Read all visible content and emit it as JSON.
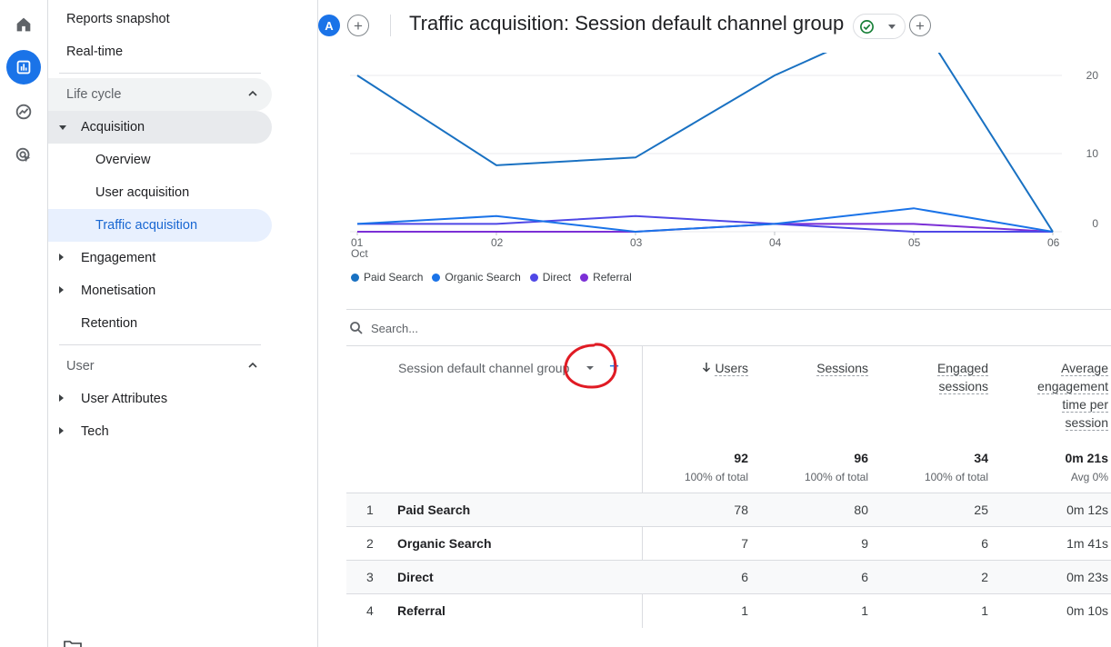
{
  "rail": {
    "items": [
      {
        "icon": "home-icon"
      },
      {
        "icon": "reports-icon",
        "active": true
      },
      {
        "icon": "explore-icon"
      },
      {
        "icon": "advertising-icon"
      }
    ]
  },
  "nav": {
    "reports_snapshot": "Reports snapshot",
    "realtime": "Real-time",
    "lifecycle": {
      "label": "Life cycle",
      "acquisition": "Acquisition",
      "overview": "Overview",
      "user_acquisition": "User acquisition",
      "traffic_acquisition": "Traffic acquisition",
      "engagement": "Engagement",
      "monetisation": "Monetisation",
      "retention": "Retention"
    },
    "user": {
      "label": "User",
      "user_attributes": "User Attributes",
      "tech": "Tech"
    }
  },
  "header": {
    "avatar_letter": "A",
    "title": "Traffic acquisition: Session default channel group",
    "plus": "+"
  },
  "chart_data": {
    "type": "line",
    "categories": [
      "01",
      "02",
      "03",
      "04",
      "05",
      "06"
    ],
    "x_sublabel": "Oct",
    "yticks": [
      "20",
      "10",
      "0"
    ],
    "ylim": [
      0,
      20
    ],
    "series": [
      {
        "name": "Paid Search",
        "color": "#1971c2",
        "values": [
          20,
          8.5,
          9.5,
          20,
          28,
          0
        ]
      },
      {
        "name": "Organic Search",
        "color": "#1a73e8",
        "values": [
          1,
          2,
          0,
          1,
          3,
          0
        ]
      },
      {
        "name": "Direct",
        "color": "#4f47e6",
        "values": [
          1,
          1,
          2,
          1,
          0,
          0
        ]
      },
      {
        "name": "Referral",
        "color": "#7b2fd6",
        "values": [
          0,
          0,
          0,
          1,
          1,
          0
        ]
      }
    ]
  },
  "search": {
    "placeholder": "Search..."
  },
  "table": {
    "dimension_header": "Session default channel group",
    "add_icon": "+",
    "metrics": [
      {
        "label": "Users",
        "sorted": true,
        "total": "92",
        "sub": "100% of total"
      },
      {
        "label": "Sessions",
        "total": "96",
        "sub": "100% of total"
      },
      {
        "label_lines": [
          "Engaged",
          "sessions"
        ],
        "total": "34",
        "sub": "100% of total"
      },
      {
        "label_lines": [
          "Average",
          "engagement",
          "time per",
          "session"
        ],
        "total": "0m 21s",
        "sub": "Avg 0%"
      }
    ],
    "rows": [
      {
        "idx": "1",
        "label": "Paid Search",
        "users": "78",
        "sessions": "80",
        "engaged": "25",
        "avg": "0m 12s"
      },
      {
        "idx": "2",
        "label": "Organic Search",
        "users": "7",
        "sessions": "9",
        "engaged": "6",
        "avg": "1m 41s"
      },
      {
        "idx": "3",
        "label": "Direct",
        "users": "6",
        "sessions": "6",
        "engaged": "2",
        "avg": "0m 23s"
      },
      {
        "idx": "4",
        "label": "Referral",
        "users": "1",
        "sessions": "1",
        "engaged": "1",
        "avg": "0m 10s"
      }
    ]
  }
}
